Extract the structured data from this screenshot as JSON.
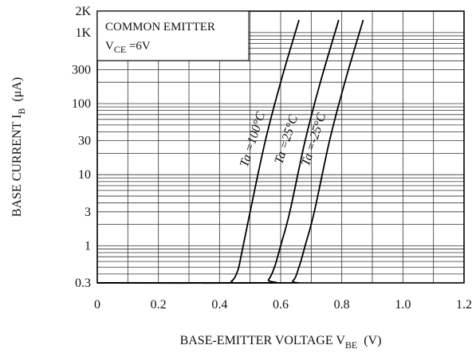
{
  "chart_data": {
    "type": "line",
    "title": "",
    "legend_box": {
      "line1": "COMMON EMITTER",
      "line2_main": "V",
      "line2_sub": "CE",
      "line2_rest": " =6V"
    },
    "xlabel": {
      "main": "BASE-EMITTER VOLTAGE V",
      "sub": "BE",
      "rest": "  (V)"
    },
    "ylabel": {
      "main": "BASE CURRENT I",
      "sub": "B",
      "rest": "  (μA)"
    },
    "x_scale": "linear",
    "y_scale": "log",
    "xlim": [
      0,
      1.2
    ],
    "ylim": [
      0.3,
      2000
    ],
    "x_ticks": [
      {
        "value": 0,
        "label": "0"
      },
      {
        "value": 0.2,
        "label": "0.2"
      },
      {
        "value": 0.4,
        "label": "0.4"
      },
      {
        "value": 0.6,
        "label": "0.6"
      },
      {
        "value": 0.8,
        "label": "0.8"
      },
      {
        "value": 1.0,
        "label": "1.0"
      },
      {
        "value": 1.2,
        "label": "1.2"
      }
    ],
    "y_ticks": [
      {
        "value": 0.3,
        "label": "0.3"
      },
      {
        "value": 1,
        "label": "1"
      },
      {
        "value": 3,
        "label": "3"
      },
      {
        "value": 10,
        "label": "10"
      },
      {
        "value": 30,
        "label": "30"
      },
      {
        "value": 100,
        "label": "100"
      },
      {
        "value": 300,
        "label": "300"
      },
      {
        "value": 1000,
        "label": "1K"
      },
      {
        "value": 2000,
        "label": "2K"
      }
    ],
    "grid": true,
    "series": [
      {
        "name": "Ta =100°C",
        "label_at": {
          "x": 0.52,
          "y": 30
        },
        "x": [
          0.0,
          0.4,
          0.44,
          0.46,
          0.47,
          0.5,
          0.55,
          0.6,
          0.66
        ],
        "y": [
          0.3,
          0.3,
          0.32,
          0.45,
          0.7,
          3,
          30,
          200,
          1500
        ]
      },
      {
        "name": "Ta =25°C",
        "label_at": {
          "x": 0.63,
          "y": 30
        },
        "x": [
          0.0,
          0.54,
          0.56,
          0.58,
          0.6,
          0.63,
          0.68,
          0.73,
          0.79
        ],
        "y": [
          0.3,
          0.3,
          0.33,
          0.5,
          1,
          3,
          30,
          200,
          1500
        ]
      },
      {
        "name": "Ta =-25°C",
        "label_at": {
          "x": 0.72,
          "y": 30
        },
        "x": [
          0.0,
          0.6,
          0.64,
          0.66,
          0.68,
          0.71,
          0.76,
          0.81,
          0.87
        ],
        "y": [
          0.3,
          0.3,
          0.32,
          0.5,
          1,
          3,
          30,
          200,
          1500
        ]
      }
    ]
  }
}
